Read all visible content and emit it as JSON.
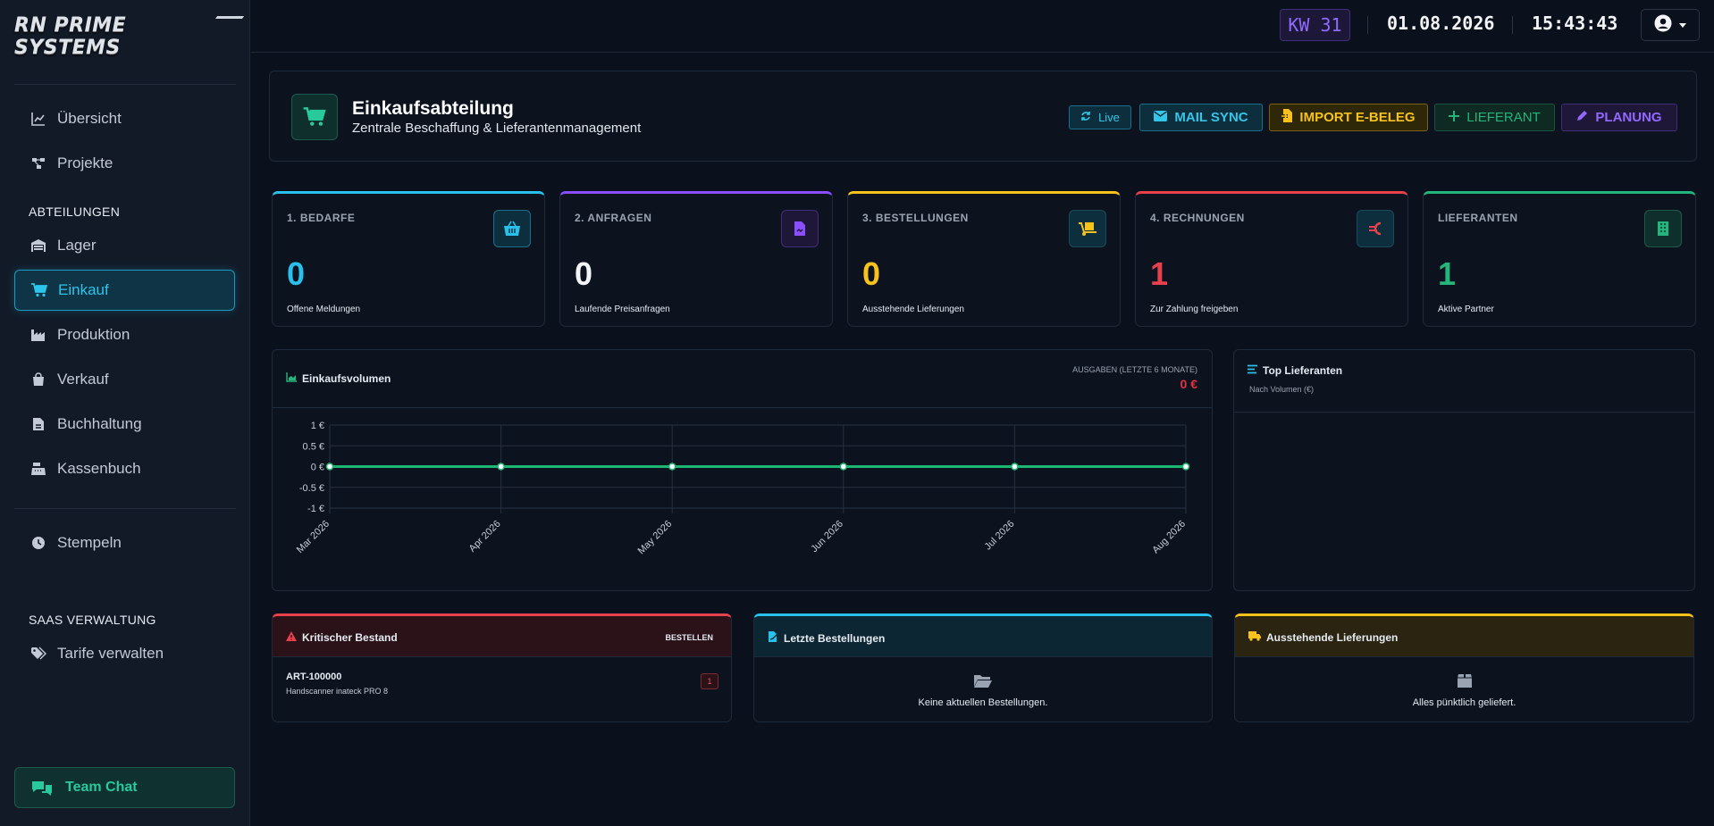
{
  "brand": "RN PRIME SYSTEMS",
  "sidebar": {
    "items_top": [
      {
        "label": "Übersicht",
        "icon": "chart-line-icon"
      },
      {
        "label": "Projekte",
        "icon": "project-diagram-icon"
      }
    ],
    "section_abteilungen": "ABTEILUNGEN",
    "items_dept": [
      {
        "label": "Lager",
        "icon": "warehouse-icon"
      },
      {
        "label": "Einkauf",
        "icon": "cart-icon",
        "active": true
      },
      {
        "label": "Produktion",
        "icon": "factory-icon"
      },
      {
        "label": "Verkauf",
        "icon": "shopping-bag-icon"
      },
      {
        "label": "Buchhaltung",
        "icon": "invoice-icon"
      },
      {
        "label": "Kassenbuch",
        "icon": "cash-register-icon"
      }
    ],
    "stempeln": {
      "label": "Stempeln",
      "icon": "clock-icon"
    },
    "section_saas": "SAAS VERWALTUNG",
    "tarife": {
      "label": "Tarife verwalten",
      "icon": "tags-icon"
    },
    "team_chat": "Team Chat"
  },
  "topbar": {
    "week": "KW 31",
    "date": "01.08.2026",
    "time": "15:43:43"
  },
  "header": {
    "title": "Einkaufsabteilung",
    "subtitle": "Zentrale Beschaffung & Lieferantenmanagement",
    "live_label": "Live",
    "mail_sync": "MAIL SYNC",
    "import": "IMPORT E-BELEG",
    "lieferant": "LIEFERANT",
    "planung": "PLANUNG"
  },
  "stats": [
    {
      "label": "1. BEDARFE",
      "value": "0",
      "desc": "Offene Meldungen",
      "color": "#29c0ec"
    },
    {
      "label": "2. ANFRAGEN",
      "value": "0",
      "desc": "Laufende Preisanfragen",
      "color": "#8a4dff"
    },
    {
      "label": "3. BESTELLUNGEN",
      "value": "0",
      "desc": "Ausstehende Lieferungen",
      "color": "#f6c21b"
    },
    {
      "label": "4. RECHNUNGEN",
      "value": "1",
      "desc": "Zur Zahlung freigeben",
      "color": "#e8414d"
    },
    {
      "label": "LIEFERANTEN",
      "value": "1",
      "desc": "Aktive Partner",
      "color": "#23b57c"
    }
  ],
  "chart": {
    "title": "Einkaufsvolumen",
    "spend_label": "AUSGABEN (LETZTE 6 MONATE)",
    "spend_value": "0 €"
  },
  "chart_data": {
    "type": "line",
    "categories": [
      "Mar 2026",
      "Apr 2026",
      "May 2026",
      "Jun 2026",
      "Jul 2026",
      "Aug 2026"
    ],
    "values": [
      0,
      0,
      0,
      0,
      0,
      0
    ],
    "yticks": [
      "1 €",
      "0.5 €",
      "0 €",
      "-0.5 €",
      "-1 €"
    ],
    "ylim": [
      -1,
      1
    ],
    "line_color": "#1db774",
    "grid": true
  },
  "top_lieferanten": {
    "title": "Top Lieferanten",
    "subtitle": "Nach Volumen (€)"
  },
  "kritisch": {
    "title": "Kritischer Bestand",
    "action": "BESTELLEN",
    "item_code": "ART-100000",
    "item_name": "Handscanner inateck PRO 8",
    "qty": "1"
  },
  "letzte": {
    "title": "Letzte Bestellungen",
    "empty": "Keine aktuellen Bestellungen."
  },
  "ausstehend": {
    "title": "Ausstehende Lieferungen",
    "empty": "Alles pünktlich geliefert."
  }
}
